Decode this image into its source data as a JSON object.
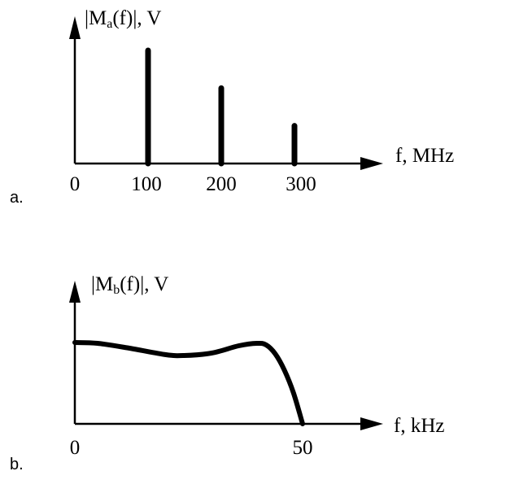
{
  "chart_data": [
    {
      "type": "bar",
      "panel_label": "a.",
      "ylabel_main": "|M",
      "ylabel_sub": "a",
      "ylabel_rest": "(f)|, V",
      "xlabel": "f, MHz",
      "x_ticks": [
        "0",
        "100",
        "200",
        "300"
      ],
      "categories": [
        100,
        200,
        300
      ],
      "values": [
        3,
        2,
        1
      ],
      "xlim": [
        0,
        400
      ],
      "ylim": [
        0,
        4
      ],
      "grid": false
    },
    {
      "type": "line",
      "panel_label": "b.",
      "ylabel_main": "|M",
      "ylabel_sub": "b",
      "ylabel_rest": "(f)|, V",
      "xlabel": "f, kHz",
      "x_ticks": [
        "0",
        "50"
      ],
      "x": [
        0,
        5,
        12,
        20,
        24,
        30,
        36,
        40,
        42,
        44,
        46,
        48,
        50
      ],
      "y": [
        1.0,
        0.99,
        0.93,
        0.85,
        0.84,
        0.87,
        0.96,
        0.99,
        0.97,
        0.86,
        0.66,
        0.38,
        0.0
      ],
      "xlim": [
        0,
        67
      ],
      "ylim": [
        0,
        1.75
      ],
      "grid": false
    }
  ]
}
